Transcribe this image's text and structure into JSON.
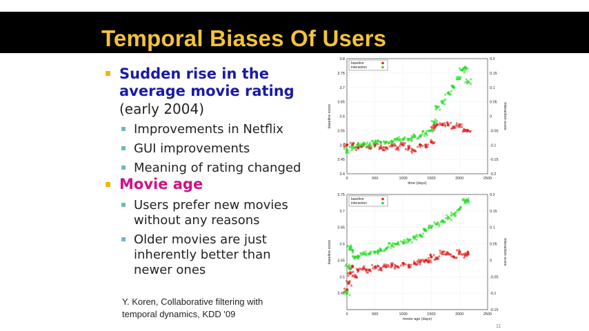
{
  "slide": {
    "title": "Temporal Biases Of Users",
    "page_number": "11",
    "bullet_1": {
      "line1": "Sudden rise in the",
      "line2": "average movie rating",
      "line3": "(early 2004)",
      "subs": [
        "Improvements in Netflix",
        "GUI improvements",
        "Meaning of rating changed"
      ]
    },
    "bullet_2": {
      "label": "Movie age",
      "sub1": [
        "Users prefer new movies",
        "without any reasons"
      ],
      "sub2": [
        "Older movies are just",
        "inherently better than",
        "newer ones"
      ]
    },
    "citation": [
      "Y. Koren, Collaborative  filtering with",
      "temporal dynamics, KDD '09"
    ],
    "colors": {
      "title": "#f3c33a",
      "bullet_blue": "#1a1aa6",
      "bullet_pink": "#d0108a",
      "bullet_marker": "#f0b800",
      "sub_marker": "#6fb7c6",
      "baseline": "#e02020",
      "interaction": "#22dd22"
    }
  },
  "chart_data": [
    {
      "type": "scatter",
      "xlabel": "time (days)",
      "ylabel": "baseline score",
      "y2label": "interaction score",
      "xlim": [
        0,
        2500
      ],
      "ylim": [
        3.4,
        3.8
      ],
      "y2lim": [
        -0.2,
        0.2
      ],
      "x_ticks": [
        "0",
        "500",
        "1000",
        "1500",
        "2000",
        "2500"
      ],
      "y_ticks": [
        "3.4",
        "3.45",
        "3.5",
        "3.55",
        "3.6",
        "3.65",
        "3.7",
        "3.75",
        "3.8"
      ],
      "y2_ticks": [
        "-0.2",
        "-0.15",
        "-0.1",
        "-0.05",
        "0",
        "0.05",
        "0.1",
        "0.15",
        "0.2"
      ],
      "grid": true,
      "legend": "top-left",
      "series": [
        {
          "name": "baseline",
          "axis": "left",
          "x": [
            0,
            100,
            200,
            300,
            400,
            500,
            600,
            700,
            800,
            900,
            1000,
            1100,
            1200,
            1300,
            1400,
            1500,
            1550,
            1600,
            1700,
            1800,
            1900,
            2000,
            2100,
            2150
          ],
          "y": [
            3.5,
            3.5,
            3.49,
            3.5,
            3.49,
            3.5,
            3.49,
            3.49,
            3.5,
            3.49,
            3.5,
            3.49,
            3.48,
            3.5,
            3.5,
            3.51,
            3.56,
            3.57,
            3.57,
            3.57,
            3.56,
            3.57,
            3.55,
            3.55
          ]
        },
        {
          "name": "interaction",
          "axis": "right",
          "x": [
            0,
            100,
            200,
            300,
            400,
            500,
            600,
            700,
            800,
            900,
            1000,
            1100,
            1200,
            1300,
            1400,
            1500,
            1550,
            1600,
            1700,
            1800,
            1900,
            2000,
            2050,
            2100,
            2150
          ],
          "y": [
            -0.12,
            -0.11,
            -0.1,
            -0.1,
            -0.1,
            -0.09,
            -0.09,
            -0.09,
            -0.09,
            -0.08,
            -0.08,
            -0.08,
            -0.07,
            -0.07,
            -0.06,
            -0.05,
            -0.02,
            0.03,
            0.05,
            0.08,
            0.1,
            0.13,
            0.16,
            0.17,
            0.12
          ]
        }
      ]
    },
    {
      "type": "scatter",
      "xlabel": "movie age (days)",
      "ylabel": "baseline score",
      "y2label": "interaction score",
      "xlim": [
        0,
        2500
      ],
      "ylim": [
        3.4,
        3.75
      ],
      "y2lim": [
        -0.15,
        0.2
      ],
      "x_ticks": [
        "0",
        "500",
        "1000",
        "1500",
        "2000",
        "2500"
      ],
      "y_ticks": [
        "3.45",
        "3.5",
        "3.55",
        "3.6",
        "3.65",
        "3.7",
        "3.75"
      ],
      "y2_ticks": [
        "-0.15",
        "-0.1",
        "-0.05",
        "0",
        "0.05",
        "0.1",
        "0.15",
        "0.2"
      ],
      "grid": true,
      "legend": "top-left",
      "series": [
        {
          "name": "baseline",
          "axis": "left",
          "x": [
            0,
            30,
            60,
            100,
            150,
            200,
            300,
            400,
            500,
            600,
            700,
            800,
            900,
            1000,
            1100,
            1200,
            1300,
            1400,
            1450,
            1500,
            1600,
            1700,
            1800,
            1900,
            2000,
            2100,
            2150
          ],
          "y": [
            3.46,
            3.48,
            3.51,
            3.53,
            3.5,
            3.52,
            3.525,
            3.52,
            3.53,
            3.525,
            3.53,
            3.535,
            3.53,
            3.54,
            3.535,
            3.54,
            3.545,
            3.55,
            3.545,
            3.56,
            3.555,
            3.575,
            3.57,
            3.56,
            3.575,
            3.565,
            3.57
          ]
        },
        {
          "name": "interaction",
          "axis": "right",
          "x": [
            0,
            30,
            60,
            100,
            150,
            200,
            300,
            400,
            500,
            600,
            700,
            800,
            900,
            1000,
            1100,
            1200,
            1300,
            1400,
            1500,
            1600,
            1700,
            1800,
            1900,
            2000,
            2100,
            2150
          ],
          "y": [
            -0.1,
            -0.02,
            0.04,
            0.03,
            0.01,
            0.01,
            0.02,
            0.02,
            0.025,
            0.03,
            0.035,
            0.045,
            0.05,
            0.055,
            0.06,
            0.07,
            0.075,
            0.09,
            0.1,
            0.11,
            0.12,
            0.13,
            0.14,
            0.155,
            0.18,
            0.18
          ]
        }
      ]
    }
  ]
}
